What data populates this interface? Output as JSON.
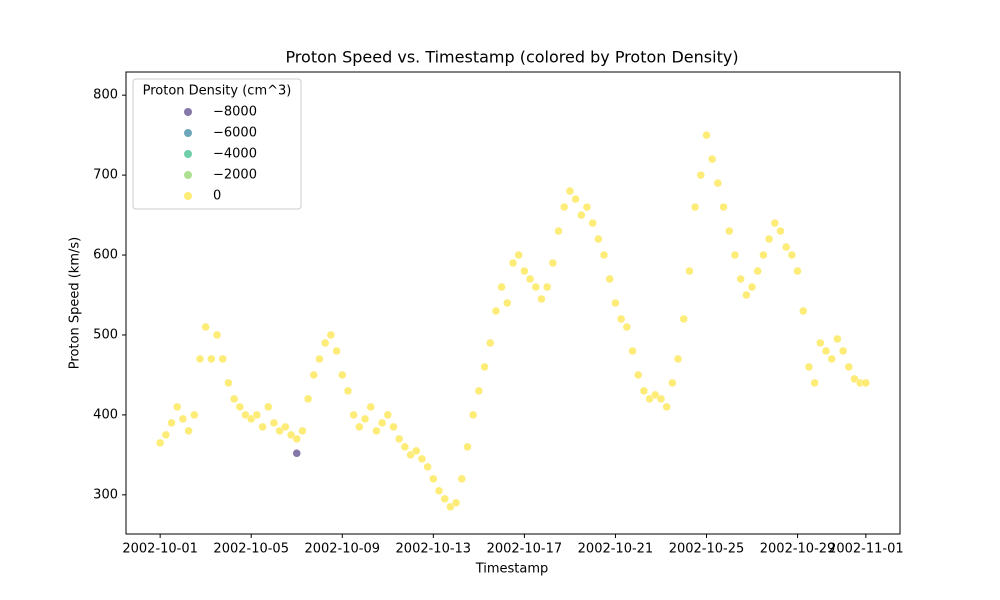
{
  "chart_data": {
    "type": "scatter",
    "title": "Proton Speed vs. Timestamp (colored by Proton Density)",
    "x_label": "Timestamp",
    "y_label": "Proton Speed (km/s)",
    "xlim": [
      "2002-09-29 12:00",
      "2002-11-02 12:00"
    ],
    "xticks": [
      "2002-10-01",
      "2002-10-05",
      "2002-10-09",
      "2002-10-13",
      "2002-10-17",
      "2002-10-21",
      "2002-10-25",
      "2002-10-29",
      "2002-11-01"
    ],
    "ylim": [
      251,
      829
    ],
    "yticks": [
      300,
      400,
      500,
      600,
      700,
      800
    ],
    "legend": {
      "title": "Proton Density (cm^3)",
      "position": "upper left",
      "entries": [
        {
          "value": -8000,
          "label": "−8000",
          "color": "#5c4a8a"
        },
        {
          "value": -6000,
          "label": "−6000",
          "color": "#3e8aa3"
        },
        {
          "value": -4000,
          "label": "−4000",
          "color": "#3fbf8c"
        },
        {
          "value": -2000,
          "label": "−2000",
          "color": "#91d66c"
        },
        {
          "value": 0,
          "label": "0",
          "color": "#fde64b"
        }
      ]
    },
    "x": [
      "2002-10-01 00:00",
      "2002-10-01 06:00",
      "2002-10-01 12:00",
      "2002-10-01 18:00",
      "2002-10-02 00:00",
      "2002-10-02 06:00",
      "2002-10-02 12:00",
      "2002-10-02 18:00",
      "2002-10-03 00:00",
      "2002-10-03 06:00",
      "2002-10-03 12:00",
      "2002-10-03 18:00",
      "2002-10-04 00:00",
      "2002-10-04 06:00",
      "2002-10-04 12:00",
      "2002-10-04 18:00",
      "2002-10-05 00:00",
      "2002-10-05 06:00",
      "2002-10-05 12:00",
      "2002-10-05 18:00",
      "2002-10-06 00:00",
      "2002-10-06 06:00",
      "2002-10-06 12:00",
      "2002-10-06 18:00",
      "2002-10-07 00:00",
      "2002-10-07 06:00",
      "2002-10-07 12:00",
      "2002-10-07 18:00",
      "2002-10-08 00:00",
      "2002-10-08 06:00",
      "2002-10-08 12:00",
      "2002-10-08 18:00",
      "2002-10-09 00:00",
      "2002-10-09 06:00",
      "2002-10-09 12:00",
      "2002-10-09 18:00",
      "2002-10-10 00:00",
      "2002-10-10 06:00",
      "2002-10-10 12:00",
      "2002-10-10 18:00",
      "2002-10-11 00:00",
      "2002-10-11 06:00",
      "2002-10-11 12:00",
      "2002-10-11 18:00",
      "2002-10-12 00:00",
      "2002-10-12 06:00",
      "2002-10-12 12:00",
      "2002-10-12 18:00",
      "2002-10-13 00:00",
      "2002-10-13 06:00",
      "2002-10-13 12:00",
      "2002-10-13 18:00",
      "2002-10-14 00:00",
      "2002-10-14 06:00",
      "2002-10-14 12:00",
      "2002-10-14 18:00",
      "2002-10-15 00:00",
      "2002-10-15 06:00",
      "2002-10-15 12:00",
      "2002-10-15 18:00",
      "2002-10-16 00:00",
      "2002-10-16 06:00",
      "2002-10-16 12:00",
      "2002-10-16 18:00",
      "2002-10-17 00:00",
      "2002-10-17 06:00",
      "2002-10-17 12:00",
      "2002-10-17 18:00",
      "2002-10-18 00:00",
      "2002-10-18 06:00",
      "2002-10-18 12:00",
      "2002-10-18 18:00",
      "2002-10-19 00:00",
      "2002-10-19 06:00",
      "2002-10-19 12:00",
      "2002-10-19 18:00",
      "2002-10-20 00:00",
      "2002-10-20 06:00",
      "2002-10-20 12:00",
      "2002-10-20 18:00",
      "2002-10-21 00:00",
      "2002-10-21 06:00",
      "2002-10-21 12:00",
      "2002-10-21 18:00",
      "2002-10-22 00:00",
      "2002-10-22 06:00",
      "2002-10-22 12:00",
      "2002-10-22 18:00",
      "2002-10-23 00:00",
      "2002-10-23 06:00",
      "2002-10-23 12:00",
      "2002-10-23 18:00",
      "2002-10-24 00:00",
      "2002-10-24 06:00",
      "2002-10-24 12:00",
      "2002-10-24 18:00",
      "2002-10-25 00:00",
      "2002-10-25 06:00",
      "2002-10-25 12:00",
      "2002-10-25 18:00",
      "2002-10-26 00:00",
      "2002-10-26 06:00",
      "2002-10-26 12:00",
      "2002-10-26 18:00",
      "2002-10-27 00:00",
      "2002-10-27 06:00",
      "2002-10-27 12:00",
      "2002-10-27 18:00",
      "2002-10-28 00:00",
      "2002-10-28 06:00",
      "2002-10-28 12:00",
      "2002-10-28 18:00",
      "2002-10-29 00:00",
      "2002-10-29 06:00",
      "2002-10-29 12:00",
      "2002-10-29 18:00",
      "2002-10-30 00:00",
      "2002-10-30 06:00",
      "2002-10-30 12:00",
      "2002-10-30 18:00",
      "2002-10-31 00:00",
      "2002-10-31 06:00",
      "2002-10-31 12:00",
      "2002-10-31 18:00",
      "2002-11-01 00:00",
      "2002-10-07 00:00"
    ],
    "values": [
      365,
      375,
      390,
      410,
      395,
      380,
      400,
      470,
      510,
      470,
      500,
      470,
      440,
      420,
      410,
      400,
      395,
      400,
      385,
      410,
      390,
      380,
      385,
      375,
      370,
      380,
      420,
      450,
      470,
      490,
      500,
      480,
      450,
      430,
      400,
      385,
      395,
      410,
      380,
      390,
      400,
      385,
      370,
      360,
      350,
      355,
      345,
      335,
      320,
      305,
      295,
      285,
      290,
      320,
      360,
      400,
      430,
      460,
      490,
      530,
      560,
      540,
      590,
      600,
      580,
      570,
      560,
      545,
      560,
      590,
      630,
      660,
      680,
      670,
      650,
      660,
      640,
      620,
      600,
      570,
      540,
      520,
      510,
      480,
      450,
      430,
      420,
      425,
      420,
      410,
      440,
      470,
      520,
      580,
      660,
      700,
      750,
      720,
      690,
      660,
      630,
      600,
      570,
      550,
      560,
      580,
      600,
      620,
      640,
      630,
      610,
      600,
      580,
      530,
      460,
      440,
      490,
      480,
      470,
      495,
      480,
      460,
      445,
      440,
      440,
      352
    ],
    "density": [
      5,
      5,
      5,
      5,
      5,
      5,
      5,
      5,
      5,
      5,
      5,
      5,
      5,
      5,
      5,
      5,
      5,
      5,
      5,
      5,
      5,
      5,
      5,
      5,
      5,
      5,
      5,
      5,
      5,
      5,
      5,
      5,
      5,
      5,
      5,
      5,
      5,
      5,
      5,
      5,
      5,
      5,
      5,
      5,
      5,
      5,
      5,
      5,
      5,
      5,
      5,
      5,
      5,
      5,
      5,
      5,
      5,
      5,
      5,
      5,
      5,
      5,
      5,
      5,
      5,
      5,
      5,
      5,
      5,
      5,
      5,
      5,
      5,
      5,
      5,
      5,
      5,
      5,
      5,
      5,
      5,
      5,
      5,
      5,
      5,
      5,
      5,
      5,
      5,
      5,
      5,
      5,
      5,
      5,
      5,
      5,
      5,
      5,
      5,
      5,
      5,
      5,
      5,
      5,
      5,
      5,
      5,
      5,
      5,
      5,
      5,
      5,
      5,
      5,
      5,
      5,
      5,
      5,
      5,
      5,
      5,
      5,
      5,
      5,
      5,
      -8500
    ]
  }
}
